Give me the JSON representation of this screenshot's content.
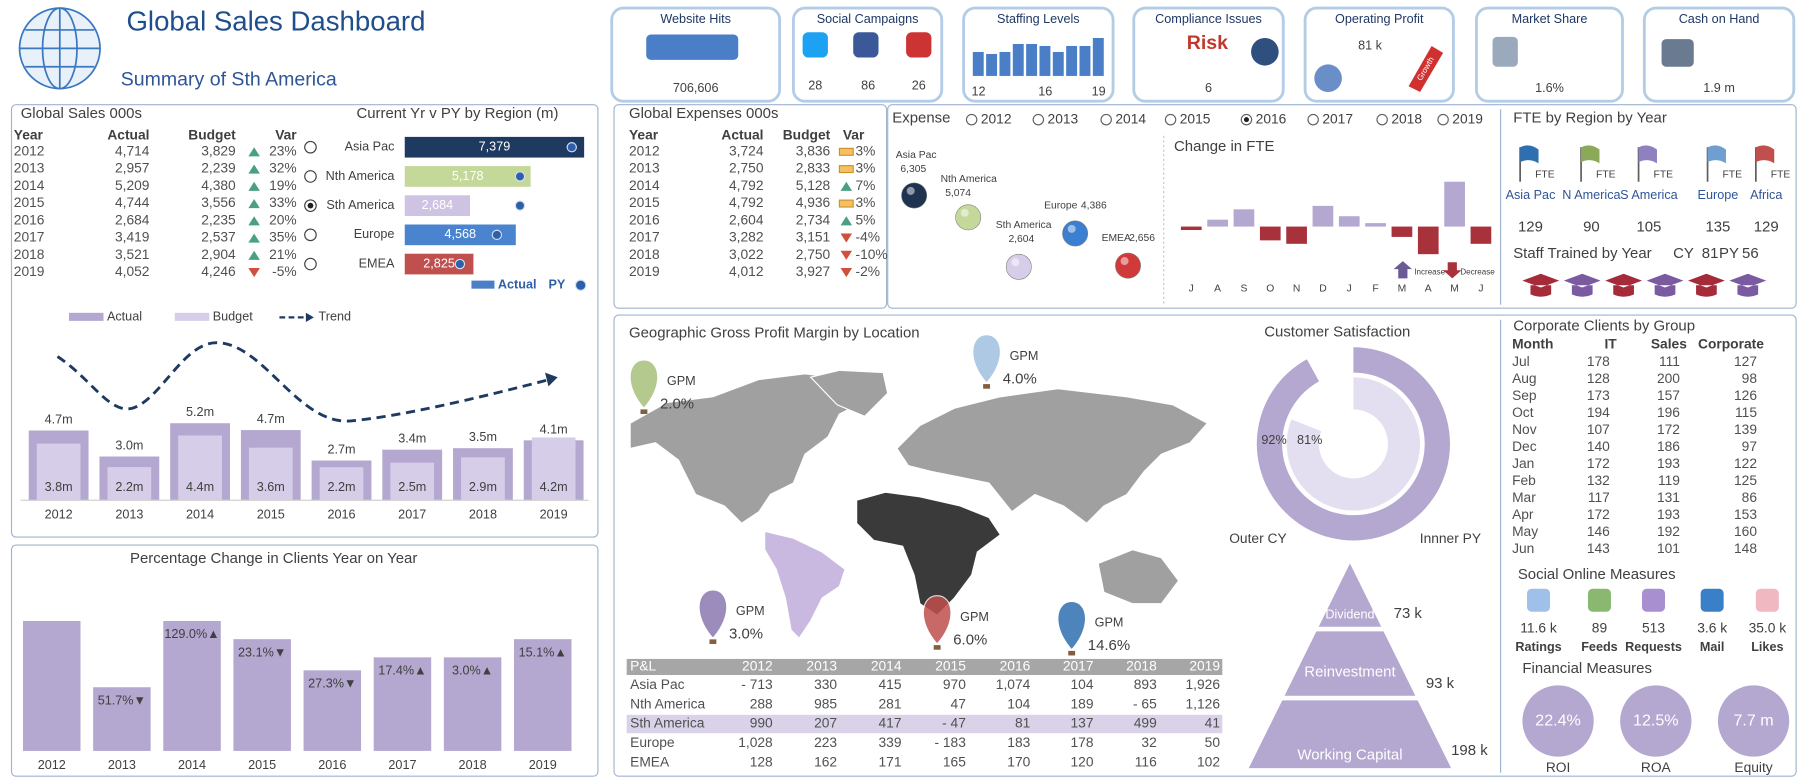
{
  "header": {
    "title": "Global Sales Dashboard",
    "subtitle": "Summary of Sth America"
  },
  "kpis": [
    {
      "label": "Website Hits",
      "value": "706,606"
    },
    {
      "label": "Social Campaigns",
      "values": [
        "28",
        "86",
        "26"
      ]
    },
    {
      "label": "Staffing Levels",
      "chart": {
        "type": "bar",
        "categories": [
          "12",
          null,
          null,
          null,
          null,
          "16",
          null,
          null,
          null,
          "19"
        ],
        "values": [
          12,
          11,
          12,
          16,
          16,
          15,
          12,
          15,
          15,
          19
        ],
        "color": "#4a7fc8"
      }
    },
    {
      "label": "Compliance Issues",
      "value": "6",
      "badge": "Risk"
    },
    {
      "label": "Operating Profit",
      "value": "81 k",
      "badge": "Growth"
    },
    {
      "label": "Market Share",
      "value": "1.6%"
    },
    {
      "label": "Cash on Hand",
      "value": "1.9 m"
    }
  ],
  "sales": {
    "title": "Global Sales 000s",
    "columns": [
      "Year",
      "Actual",
      "Budget",
      "Var"
    ],
    "rows": [
      [
        "2012",
        "4,714",
        "3,829",
        "23%"
      ],
      [
        "2013",
        "2,957",
        "2,239",
        "32%"
      ],
      [
        "2014",
        "5,209",
        "4,380",
        "19%"
      ],
      [
        "2015",
        "4,744",
        "3,556",
        "33%"
      ],
      [
        "2016",
        "2,684",
        "2,235",
        "20%"
      ],
      [
        "2017",
        "3,419",
        "2,537",
        "35%"
      ],
      [
        "2018",
        "3,521",
        "2,904",
        "21%"
      ],
      [
        "2019",
        "4,052",
        "4,246",
        "-5%"
      ]
    ],
    "trend": [
      "up",
      "up",
      "up",
      "up",
      "up",
      "up",
      "up",
      "down"
    ]
  },
  "region": {
    "type": "bar",
    "title": "Current Yr v PY by Region (m)",
    "categories": [
      "Asia Pac",
      "Nth America",
      "Sth America",
      "Europe",
      "EMEA"
    ],
    "values": [
      7379,
      5178,
      2684,
      4568,
      2825
    ],
    "value_labels": [
      "7,379",
      "5,178",
      "2,684",
      "4,568",
      "2,825"
    ],
    "py": [
      6870,
      4740,
      4740,
      3790,
      2270
    ],
    "colors": [
      "#1f3a60",
      "#c4d89a",
      "#cfc3e3",
      "#4a84cf",
      "#c0504d"
    ],
    "selected": 2,
    "legend": [
      "Actual",
      "PY"
    ]
  },
  "sales_chart": {
    "type": "bar",
    "categories": [
      "2012",
      "2013",
      "2014",
      "2015",
      "2016",
      "2017",
      "2018",
      "2019"
    ],
    "series": [
      {
        "name": "Actual",
        "color": "#b4a7d0",
        "values": [
          4714,
          2957,
          5209,
          4744,
          2684,
          3419,
          3521,
          4052
        ],
        "value_labels": [
          "4.7m",
          "3.0m",
          "5.2m",
          "4.7m",
          "2.7m",
          "3.4m",
          "3.5m",
          "4.1m"
        ]
      },
      {
        "name": "Budget",
        "color": "#d6cee8",
        "values": [
          3829,
          2239,
          4380,
          3556,
          2235,
          2537,
          2904,
          4246
        ],
        "value_labels": [
          "3.8m",
          "2.2m",
          "4.4m",
          "3.6m",
          "2.2m",
          "2.5m",
          "2.9m",
          "4.2m"
        ]
      }
    ],
    "trend_label": "Trend"
  },
  "clients_chart": {
    "type": "bar",
    "title": "Percentage Change in Clients Year on Year",
    "categories": [
      "2012",
      "2013",
      "2014",
      "2015",
      "2016",
      "2017",
      "2018",
      "2019"
    ],
    "values": [
      100,
      49,
      100,
      86,
      62,
      72,
      72,
      86
    ],
    "change_labels": [
      null,
      "51.7%▼",
      "129.0%▲",
      "23.1%▼",
      "27.3%▼",
      "17.4%▲",
      "3.0%▲",
      "15.1%▲"
    ],
    "color": "#b4a7d0"
  },
  "expenses": {
    "title": "Global Expenses 000s",
    "columns": [
      "Year",
      "Actual",
      "Budget",
      "Var"
    ],
    "rows": [
      [
        "2012",
        "3,724",
        "3,836",
        "3%"
      ],
      [
        "2013",
        "2,750",
        "2,833",
        "3%"
      ],
      [
        "2014",
        "4,792",
        "5,128",
        "7%"
      ],
      [
        "2015",
        "4,792",
        "4,936",
        "3%"
      ],
      [
        "2016",
        "2,604",
        "2,734",
        "5%"
      ],
      [
        "2017",
        "3,282",
        "3,151",
        "-4%"
      ],
      [
        "2018",
        "3,022",
        "2,750",
        "-10%"
      ],
      [
        "2019",
        "4,012",
        "3,927",
        "-2%"
      ]
    ],
    "trend": [
      "flat",
      "flat",
      "up",
      "flat",
      "up",
      "down",
      "down",
      "down"
    ]
  },
  "expense_years": {
    "label": "Expense",
    "years": [
      "2012",
      "2013",
      "2014",
      "2015",
      "2016",
      "2017",
      "2018",
      "2019"
    ],
    "selected": 4
  },
  "expense_bubbles": {
    "regions": [
      {
        "name": "Asia Pac",
        "value": "6,305",
        "color": "#1f3350"
      },
      {
        "name": "Nth America",
        "value": "5,074",
        "color": "#c4d89a"
      },
      {
        "name": "Sth America",
        "value": "2,604",
        "color": "#d6cee8"
      },
      {
        "name": "Europe",
        "value": "4,386",
        "color": "#3a7fd0"
      },
      {
        "name": "EMEA",
        "value": "2,656",
        "color": "#d03a3a"
      }
    ]
  },
  "fte_change": {
    "type": "bar",
    "title": "Change in FTE",
    "categories": [
      "J",
      "A",
      "S",
      "O",
      "N",
      "D",
      "J",
      "F",
      "M",
      "A",
      "M",
      "J"
    ],
    "values": [
      -1,
      2,
      5,
      -4,
      -5,
      6,
      3,
      1,
      -3,
      -8,
      13,
      -5
    ],
    "legend": [
      "Increase",
      "Decrease"
    ],
    "colors": [
      "#b4a7d0",
      "#a8323c"
    ]
  },
  "fte_region": {
    "title": "FTE by Region by Year",
    "flag_label": "FTE",
    "regions": [
      "Asia Pac",
      "N America",
      "S America",
      "Europe",
      "Africa"
    ],
    "values": [
      "129",
      "90",
      "105",
      "135",
      "129"
    ]
  },
  "staff_trained": {
    "label": "Staff Trained by Year",
    "cy_label": "CY",
    "cy": "81",
    "py_label": "PY",
    "py": "56"
  },
  "gpm": {
    "title": "Geographic Gross Profit Margin by Location",
    "label": "GPM",
    "balloons": [
      {
        "value": "2.0%",
        "color": "#a8c07a"
      },
      {
        "value": "4.0%",
        "color": "#9fc0e0"
      },
      {
        "value": "3.0%",
        "color": "#8a78b0"
      },
      {
        "value": "6.0%",
        "color": "#c0504d"
      },
      {
        "value": "14.6%",
        "color": "#2f6fb0"
      }
    ]
  },
  "pl": {
    "columns": [
      "P&L",
      "2012",
      "2013",
      "2014",
      "2015",
      "2016",
      "2017",
      "2018",
      "2019"
    ],
    "rows": [
      [
        "Asia Pac",
        "- 713",
        "330",
        "415",
        "970",
        "1,074",
        "104",
        "893",
        "1,926"
      ],
      [
        "Nth America",
        "288",
        "985",
        "281",
        "47",
        "104",
        "189",
        "- 65",
        "1,126"
      ],
      [
        "Sth America",
        "990",
        "207",
        "417",
        "- 47",
        "81",
        "137",
        "499",
        "41"
      ],
      [
        "Europe",
        "1,028",
        "223",
        "339",
        "- 183",
        "183",
        "178",
        "32",
        "50"
      ],
      [
        "EMEA",
        "128",
        "162",
        "171",
        "165",
        "170",
        "120",
        "116",
        "102"
      ]
    ],
    "highlight": 2
  },
  "satisfaction": {
    "type": "donut",
    "title": "Customer Satisfaction",
    "series": [
      {
        "name": "Outer CY",
        "value": 92,
        "value_label": "92%",
        "color": "#b4a7d0"
      },
      {
        "name": "Innner PY",
        "value": 81,
        "value_label": "81%",
        "color": "#e4dff0"
      }
    ]
  },
  "pyramid": {
    "color": "#b4a7d0",
    "levels": [
      {
        "name": "Dividend",
        "value": "73 k"
      },
      {
        "name": "Reinvestment",
        "value": "93 k"
      },
      {
        "name": "Working Capital",
        "value": "198 k"
      }
    ]
  },
  "corporate": {
    "title": "Corporate Clients by Group",
    "columns": [
      "Month",
      "IT",
      "Sales",
      "Corporate"
    ],
    "rows": [
      [
        "Jul",
        "178",
        "111",
        "127"
      ],
      [
        "Aug",
        "128",
        "200",
        "98"
      ],
      [
        "Sep",
        "173",
        "157",
        "126"
      ],
      [
        "Oct",
        "194",
        "196",
        "115"
      ],
      [
        "Nov",
        "107",
        "172",
        "139"
      ],
      [
        "Dec",
        "140",
        "186",
        "97"
      ],
      [
        "Jan",
        "172",
        "193",
        "122"
      ],
      [
        "Feb",
        "132",
        "119",
        "125"
      ],
      [
        "Mar",
        "117",
        "131",
        "86"
      ],
      [
        "Apr",
        "172",
        "193",
        "153"
      ],
      [
        "May",
        "146",
        "192",
        "160"
      ],
      [
        "Jun",
        "143",
        "101",
        "148"
      ]
    ]
  },
  "social": {
    "title": "Social Online Measures",
    "items": [
      {
        "value": "11.6 k",
        "label": "Ratings"
      },
      {
        "value": "89",
        "label": "Feeds"
      },
      {
        "value": "513",
        "label": "Requests"
      },
      {
        "value": "3.6 k",
        "label": "Mail"
      },
      {
        "value": "35.0 k",
        "label": "Likes"
      }
    ]
  },
  "financial": {
    "title": "Financial Measures",
    "color": "#b4a7d0",
    "items": [
      {
        "value": "22.4%",
        "label": "ROI"
      },
      {
        "value": "12.5%",
        "label": "ROA"
      },
      {
        "value": "7.7 m",
        "label": "Equity"
      }
    ]
  }
}
